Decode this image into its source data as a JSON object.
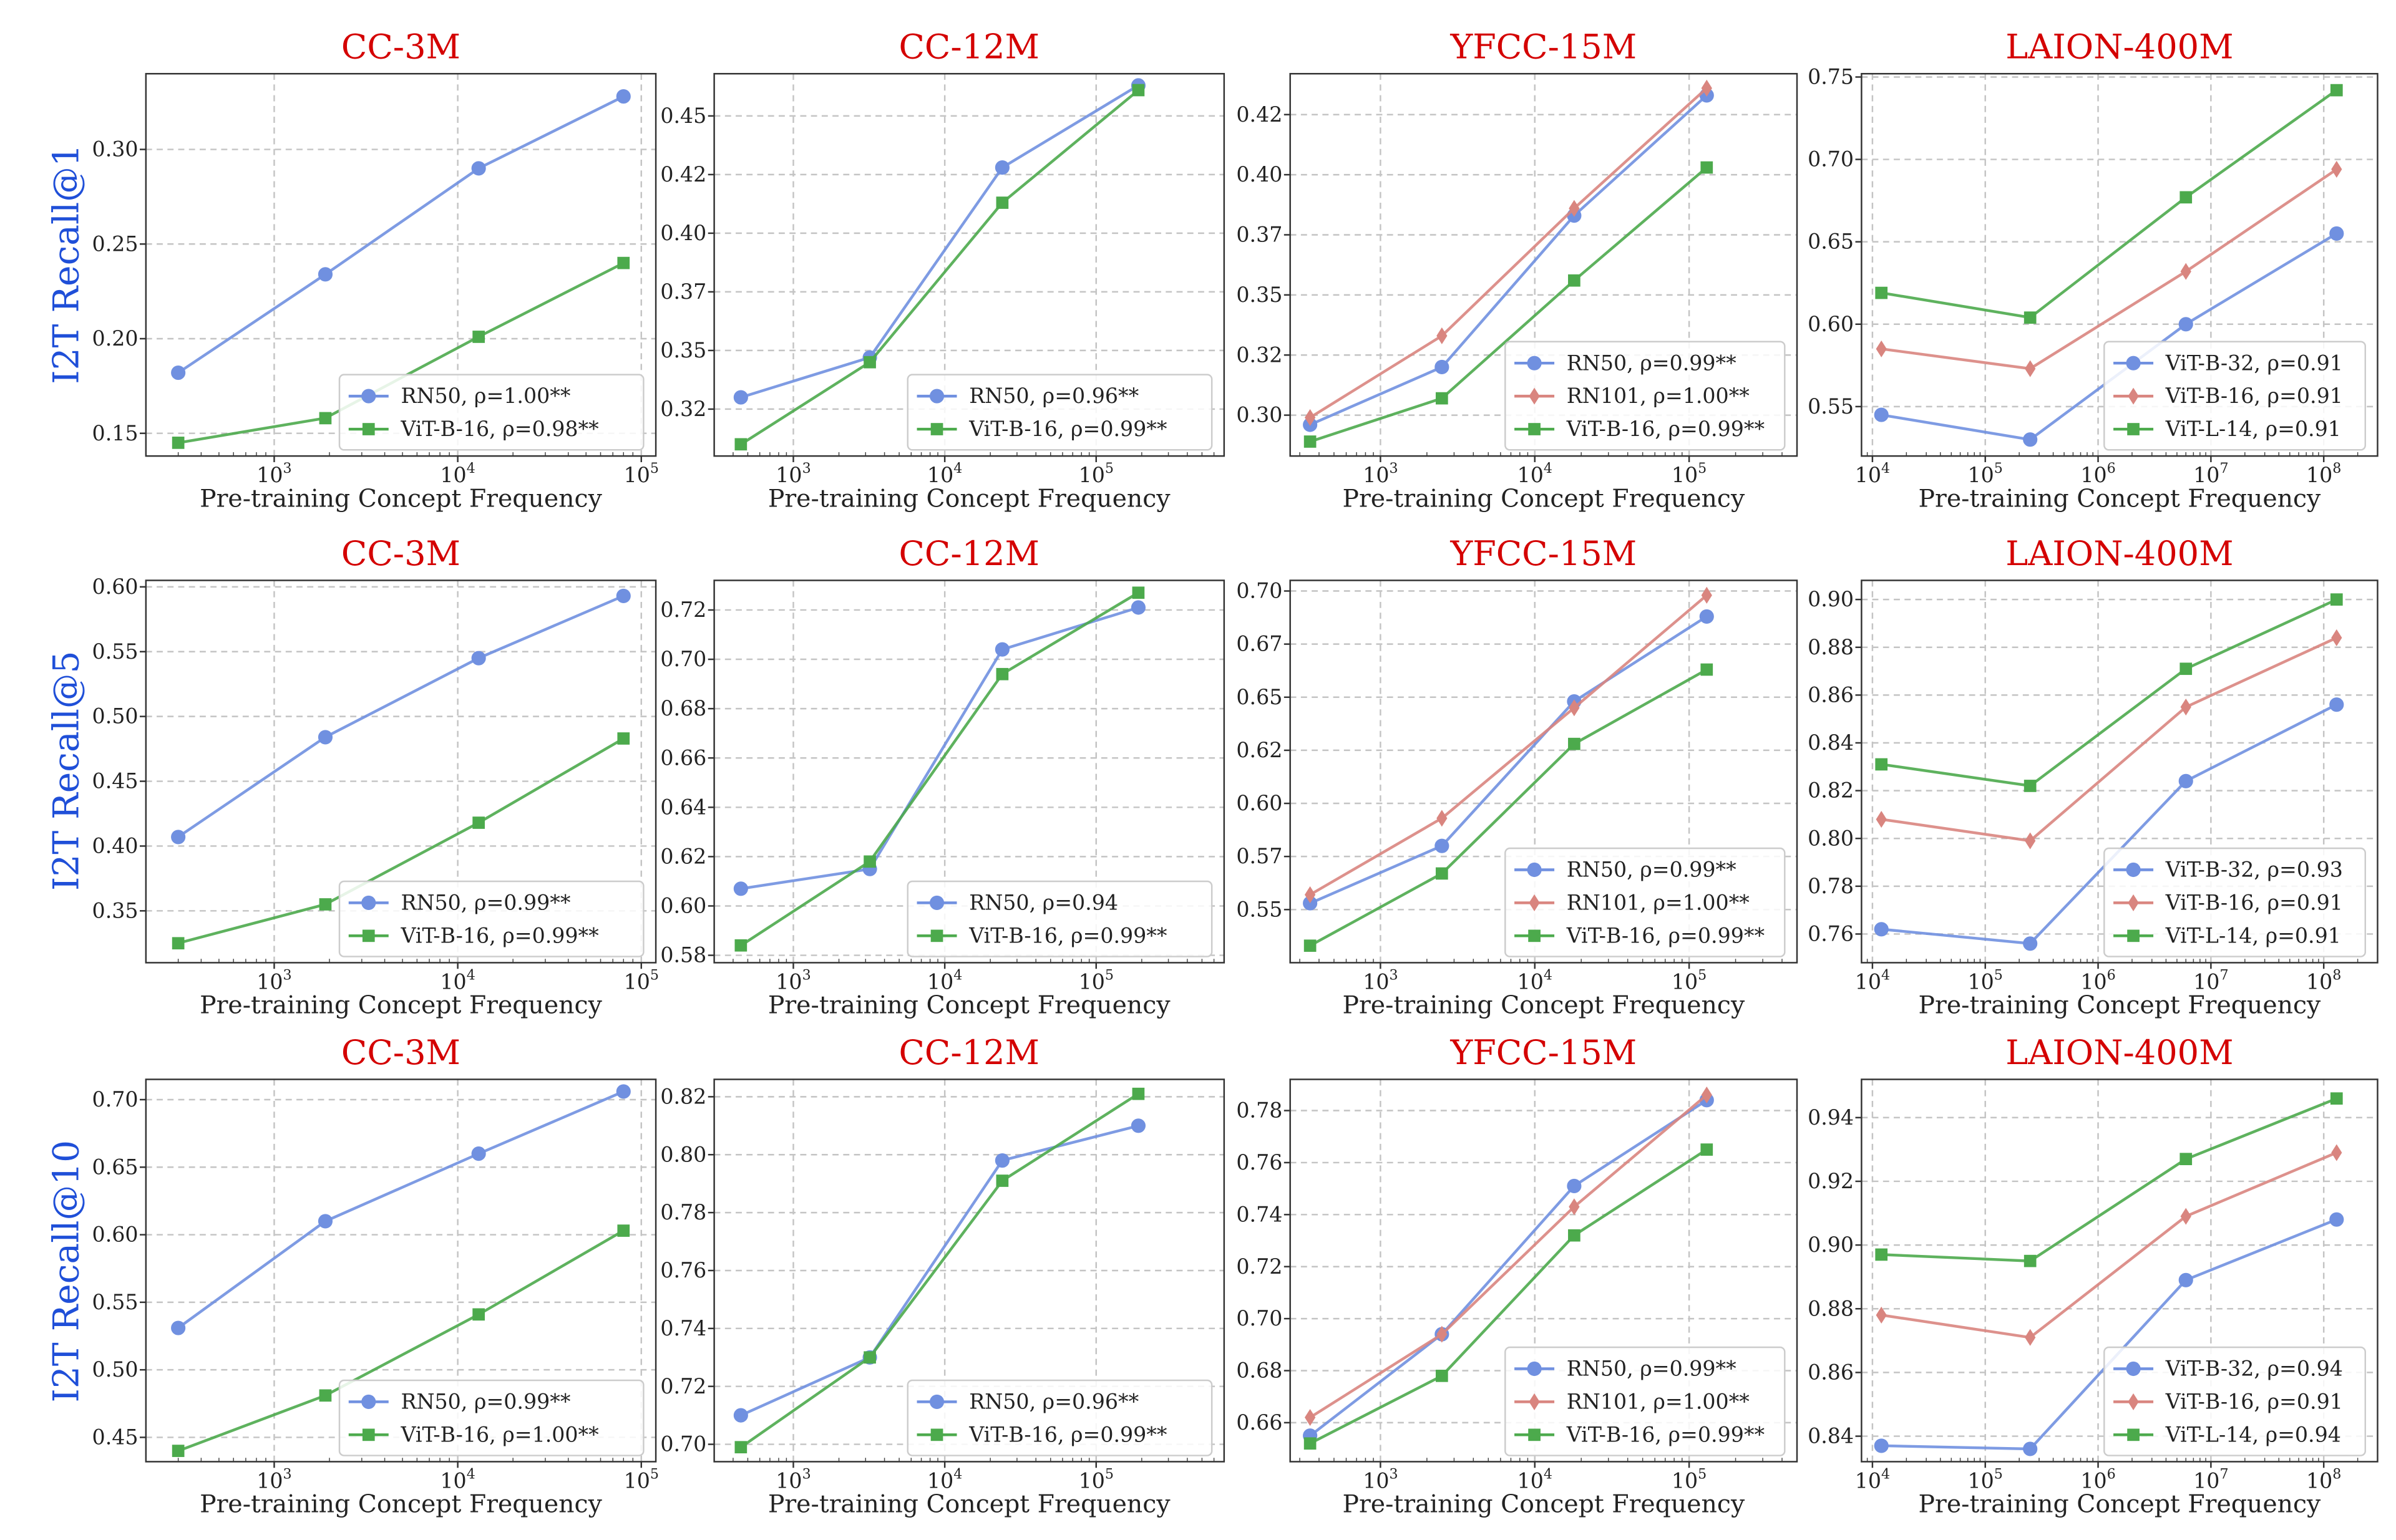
{
  "row_labels": [
    "I2T Recall@1",
    "I2T Recall@5",
    "I2T Recall@10"
  ],
  "colors": {
    "title": "#d40000",
    "row_label": "#1f4fd8",
    "RN50": "#7090e0",
    "RN101": "#d9857f",
    "ViT-B-16_cc": "#4caa4c",
    "ViT-B-32": "#7090e0",
    "ViT-B-16": "#d9857f",
    "ViT-L-14": "#4caa4c",
    "grid": "#bbbbbb"
  },
  "chart_data": [
    {
      "type": "line",
      "title": "CC-3M",
      "xlabel": "Pre-training Concept Frequency",
      "ylabel": "I2T Recall@1",
      "xscale": "log",
      "xlim": [
        200,
        120000
      ],
      "ylim": [
        0.138,
        0.34
      ],
      "xticks": [
        3,
        4,
        5
      ],
      "yticks": [
        0.15,
        0.2,
        0.25,
        0.3
      ],
      "ytick_labels": [
        "0.15",
        "0.20",
        "0.25",
        "0.30"
      ],
      "grid": true,
      "legend": "bottom-right",
      "x": [
        300,
        1900,
        13000,
        80000
      ],
      "series": [
        {
          "name": "RN50, ρ=1.00**",
          "marker": "circle",
          "color": "#7090e0",
          "values": [
            0.182,
            0.234,
            0.29,
            0.328
          ]
        },
        {
          "name": "ViT-B-16, ρ=0.98**",
          "marker": "square",
          "color": "#4caa4c",
          "values": [
            0.145,
            0.158,
            0.201,
            0.24
          ]
        }
      ]
    },
    {
      "type": "line",
      "title": "CC-12M",
      "xlabel": "Pre-training Concept Frequency",
      "xscale": "log",
      "xlim": [
        300,
        700000
      ],
      "ylim": [
        0.305,
        0.468
      ],
      "xticks": [
        3,
        4,
        5
      ],
      "yticks": [
        0.325,
        0.35,
        0.375,
        0.4,
        0.425,
        0.45
      ],
      "ytick_labels": [
        "0.32",
        "0.35",
        "0.37",
        "0.40",
        "0.42",
        "0.45"
      ],
      "grid": true,
      "legend": "bottom-right",
      "x": [
        450,
        3200,
        24000,
        190000
      ],
      "series": [
        {
          "name": "RN50, ρ=0.96**",
          "marker": "circle",
          "color": "#7090e0",
          "values": [
            0.33,
            0.347,
            0.428,
            0.463
          ]
        },
        {
          "name": "ViT-B-16, ρ=0.99**",
          "marker": "square",
          "color": "#4caa4c",
          "values": [
            0.31,
            0.345,
            0.413,
            0.461
          ]
        }
      ]
    },
    {
      "type": "line",
      "title": "YFCC-15M",
      "xlabel": "Pre-training Concept Frequency",
      "xscale": "log",
      "xlim": [
        260,
        500000
      ],
      "ylim": [
        0.283,
        0.442
      ],
      "xticks": [
        3,
        4,
        5
      ],
      "yticks": [
        0.3,
        0.325,
        0.35,
        0.375,
        0.4,
        0.425
      ],
      "ytick_labels": [
        "0.30",
        "0.32",
        "0.35",
        "0.37",
        "0.40",
        "0.42"
      ],
      "grid": true,
      "legend": "bottom-right",
      "x": [
        350,
        2500,
        18000,
        130000
      ],
      "series": [
        {
          "name": "RN50, ρ=0.99**",
          "marker": "circle",
          "color": "#7090e0",
          "values": [
            0.296,
            0.32,
            0.383,
            0.433
          ]
        },
        {
          "name": "RN101, ρ=1.00**",
          "marker": "diamond",
          "color": "#d9857f",
          "values": [
            0.299,
            0.333,
            0.386,
            0.436
          ]
        },
        {
          "name": "ViT-B-16, ρ=0.99**",
          "marker": "square",
          "color": "#4caa4c",
          "values": [
            0.289,
            0.307,
            0.356,
            0.403
          ]
        }
      ]
    },
    {
      "type": "line",
      "title": "LAION-400M",
      "xlabel": "Pre-training Concept Frequency",
      "xscale": "log",
      "xlim": [
        8000,
        300000000
      ],
      "ylim": [
        0.52,
        0.752
      ],
      "xticks": [
        4,
        5,
        6,
        7,
        8
      ],
      "yticks": [
        0.55,
        0.6,
        0.65,
        0.7,
        0.75
      ],
      "ytick_labels": [
        "0.55",
        "0.60",
        "0.65",
        "0.70",
        "0.75"
      ],
      "grid": true,
      "legend": "bottom-right",
      "x": [
        12000,
        250000,
        6000000,
        130000000
      ],
      "series": [
        {
          "name": "ViT-B-32, ρ=0.91",
          "marker": "circle",
          "color": "#7090e0",
          "values": [
            0.545,
            0.53,
            0.6,
            0.655
          ]
        },
        {
          "name": "ViT-B-16, ρ=0.91",
          "marker": "diamond",
          "color": "#d9857f",
          "values": [
            0.585,
            0.573,
            0.632,
            0.694
          ]
        },
        {
          "name": "ViT-L-14, ρ=0.91",
          "marker": "square",
          "color": "#4caa4c",
          "values": [
            0.619,
            0.604,
            0.677,
            0.742
          ]
        }
      ]
    },
    {
      "type": "line",
      "title": "CC-3M",
      "xlabel": "Pre-training Concept Frequency",
      "ylabel": "I2T Recall@5",
      "xscale": "log",
      "xlim": [
        200,
        120000
      ],
      "ylim": [
        0.31,
        0.605
      ],
      "xticks": [
        3,
        4,
        5
      ],
      "yticks": [
        0.35,
        0.4,
        0.45,
        0.5,
        0.55,
        0.6
      ],
      "ytick_labels": [
        "0.35",
        "0.40",
        "0.45",
        "0.50",
        "0.55",
        "0.60"
      ],
      "grid": true,
      "legend": "bottom-right",
      "x": [
        300,
        1900,
        13000,
        80000
      ],
      "series": [
        {
          "name": "RN50, ρ=0.99**",
          "marker": "circle",
          "color": "#7090e0",
          "values": [
            0.407,
            0.484,
            0.545,
            0.593
          ]
        },
        {
          "name": "ViT-B-16, ρ=0.99**",
          "marker": "square",
          "color": "#4caa4c",
          "values": [
            0.325,
            0.355,
            0.418,
            0.483
          ]
        }
      ]
    },
    {
      "type": "line",
      "title": "CC-12M",
      "xlabel": "Pre-training Concept Frequency",
      "xscale": "log",
      "xlim": [
        300,
        700000
      ],
      "ylim": [
        0.577,
        0.732
      ],
      "xticks": [
        3,
        4,
        5
      ],
      "yticks": [
        0.58,
        0.6,
        0.62,
        0.64,
        0.66,
        0.68,
        0.7,
        0.72
      ],
      "ytick_labels": [
        "0.58",
        "0.60",
        "0.62",
        "0.64",
        "0.66",
        "0.68",
        "0.70",
        "0.72"
      ],
      "grid": true,
      "legend": "bottom-right",
      "x": [
        450,
        3200,
        24000,
        190000
      ],
      "series": [
        {
          "name": "RN50, ρ=0.94",
          "marker": "circle",
          "color": "#7090e0",
          "values": [
            0.607,
            0.615,
            0.704,
            0.721
          ]
        },
        {
          "name": "ViT-B-16, ρ=0.99**",
          "marker": "square",
          "color": "#4caa4c",
          "values": [
            0.584,
            0.618,
            0.694,
            0.727
          ]
        }
      ]
    },
    {
      "type": "line",
      "title": "YFCC-15M",
      "xlabel": "Pre-training Concept Frequency",
      "xscale": "log",
      "xlim": [
        260,
        500000
      ],
      "ylim": [
        0.525,
        0.705
      ],
      "xticks": [
        3,
        4,
        5
      ],
      "yticks": [
        0.55,
        0.575,
        0.6,
        0.625,
        0.65,
        0.675,
        0.7
      ],
      "ytick_labels": [
        "0.55",
        "0.57",
        "0.60",
        "0.62",
        "0.65",
        "0.67",
        "0.70"
      ],
      "grid": true,
      "legend": "bottom-right",
      "x": [
        350,
        2500,
        18000,
        130000
      ],
      "series": [
        {
          "name": "RN50, ρ=0.99**",
          "marker": "circle",
          "color": "#7090e0",
          "values": [
            0.553,
            0.58,
            0.648,
            0.688
          ]
        },
        {
          "name": "RN101, ρ=1.00**",
          "marker": "diamond",
          "color": "#d9857f",
          "values": [
            0.557,
            0.593,
            0.645,
            0.698
          ]
        },
        {
          "name": "ViT-B-16, ρ=0.99**",
          "marker": "square",
          "color": "#4caa4c",
          "values": [
            0.533,
            0.567,
            0.628,
            0.663
          ]
        }
      ]
    },
    {
      "type": "line",
      "title": "LAION-400M",
      "xlabel": "Pre-training Concept Frequency",
      "xscale": "log",
      "xlim": [
        8000,
        300000000
      ],
      "ylim": [
        0.748,
        0.908
      ],
      "xticks": [
        4,
        5,
        6,
        7,
        8
      ],
      "yticks": [
        0.76,
        0.78,
        0.8,
        0.82,
        0.84,
        0.86,
        0.88,
        0.9
      ],
      "ytick_labels": [
        "0.76",
        "0.78",
        "0.80",
        "0.82",
        "0.84",
        "0.86",
        "0.88",
        "0.90"
      ],
      "grid": true,
      "legend": "bottom-right",
      "x": [
        12000,
        250000,
        6000000,
        130000000
      ],
      "series": [
        {
          "name": "ViT-B-32, ρ=0.93",
          "marker": "circle",
          "color": "#7090e0",
          "values": [
            0.762,
            0.756,
            0.824,
            0.856
          ]
        },
        {
          "name": "ViT-B-16, ρ=0.91",
          "marker": "diamond",
          "color": "#d9857f",
          "values": [
            0.808,
            0.799,
            0.855,
            0.884
          ]
        },
        {
          "name": "ViT-L-14, ρ=0.91",
          "marker": "square",
          "color": "#4caa4c",
          "values": [
            0.831,
            0.822,
            0.871,
            0.9
          ]
        }
      ]
    },
    {
      "type": "line",
      "title": "CC-3M",
      "xlabel": "Pre-training Concept Frequency",
      "ylabel": "I2T Recall@10",
      "xscale": "log",
      "xlim": [
        200,
        120000
      ],
      "ylim": [
        0.432,
        0.715
      ],
      "xticks": [
        3,
        4,
        5
      ],
      "yticks": [
        0.45,
        0.5,
        0.55,
        0.6,
        0.65,
        0.7
      ],
      "ytick_labels": [
        "0.45",
        "0.50",
        "0.55",
        "0.60",
        "0.65",
        "0.70"
      ],
      "grid": true,
      "legend": "bottom-right",
      "x": [
        300,
        1900,
        13000,
        80000
      ],
      "series": [
        {
          "name": "RN50, ρ=0.99**",
          "marker": "circle",
          "color": "#7090e0",
          "values": [
            0.531,
            0.61,
            0.66,
            0.706
          ]
        },
        {
          "name": "ViT-B-16, ρ=1.00**",
          "marker": "square",
          "color": "#4caa4c",
          "values": [
            0.44,
            0.481,
            0.541,
            0.603
          ]
        }
      ]
    },
    {
      "type": "line",
      "title": "CC-12M",
      "xlabel": "Pre-training Concept Frequency",
      "xscale": "log",
      "xlim": [
        300,
        700000
      ],
      "ylim": [
        0.694,
        0.826
      ],
      "xticks": [
        3,
        4,
        5
      ],
      "yticks": [
        0.7,
        0.72,
        0.74,
        0.76,
        0.78,
        0.8,
        0.82
      ],
      "ytick_labels": [
        "0.70",
        "0.72",
        "0.74",
        "0.76",
        "0.78",
        "0.80",
        "0.82"
      ],
      "grid": true,
      "legend": "bottom-right",
      "x": [
        450,
        3200,
        24000,
        190000
      ],
      "series": [
        {
          "name": "RN50, ρ=0.96**",
          "marker": "circle",
          "color": "#7090e0",
          "values": [
            0.71,
            0.73,
            0.798,
            0.81
          ]
        },
        {
          "name": "ViT-B-16, ρ=0.99**",
          "marker": "square",
          "color": "#4caa4c",
          "values": [
            0.699,
            0.73,
            0.791,
            0.821
          ]
        }
      ]
    },
    {
      "type": "line",
      "title": "YFCC-15M",
      "xlabel": "Pre-training Concept Frequency",
      "xscale": "log",
      "xlim": [
        260,
        500000
      ],
      "ylim": [
        0.645,
        0.792
      ],
      "xticks": [
        3,
        4,
        5
      ],
      "yticks": [
        0.66,
        0.68,
        0.7,
        0.72,
        0.74,
        0.76,
        0.78
      ],
      "ytick_labels": [
        "0.66",
        "0.68",
        "0.70",
        "0.72",
        "0.74",
        "0.76",
        "0.78"
      ],
      "grid": true,
      "legend": "bottom-right",
      "x": [
        350,
        2500,
        18000,
        130000
      ],
      "series": [
        {
          "name": "RN50, ρ=0.99**",
          "marker": "circle",
          "color": "#7090e0",
          "values": [
            0.655,
            0.694,
            0.751,
            0.784
          ]
        },
        {
          "name": "RN101, ρ=1.00**",
          "marker": "diamond",
          "color": "#d9857f",
          "values": [
            0.662,
            0.694,
            0.743,
            0.786
          ]
        },
        {
          "name": "ViT-B-16, ρ=0.99**",
          "marker": "square",
          "color": "#4caa4c",
          "values": [
            0.652,
            0.678,
            0.732,
            0.765
          ]
        }
      ]
    },
    {
      "type": "line",
      "title": "LAION-400M",
      "xlabel": "Pre-training Concept Frequency",
      "xscale": "log",
      "xlim": [
        8000,
        300000000
      ],
      "ylim": [
        0.832,
        0.952
      ],
      "xticks": [
        4,
        5,
        6,
        7,
        8
      ],
      "yticks": [
        0.84,
        0.86,
        0.88,
        0.9,
        0.92,
        0.94
      ],
      "ytick_labels": [
        "0.84",
        "0.86",
        "0.88",
        "0.90",
        "0.92",
        "0.94"
      ],
      "grid": true,
      "legend": "bottom-right",
      "x": [
        12000,
        250000,
        6000000,
        130000000
      ],
      "series": [
        {
          "name": "ViT-B-32, ρ=0.94",
          "marker": "circle",
          "color": "#7090e0",
          "values": [
            0.837,
            0.836,
            0.889,
            0.908
          ]
        },
        {
          "name": "ViT-B-16, ρ=0.91",
          "marker": "diamond",
          "color": "#d9857f",
          "values": [
            0.878,
            0.871,
            0.909,
            0.929
          ]
        },
        {
          "name": "ViT-L-14, ρ=0.94",
          "marker": "square",
          "color": "#4caa4c",
          "values": [
            0.897,
            0.895,
            0.927,
            0.946
          ]
        }
      ]
    }
  ]
}
